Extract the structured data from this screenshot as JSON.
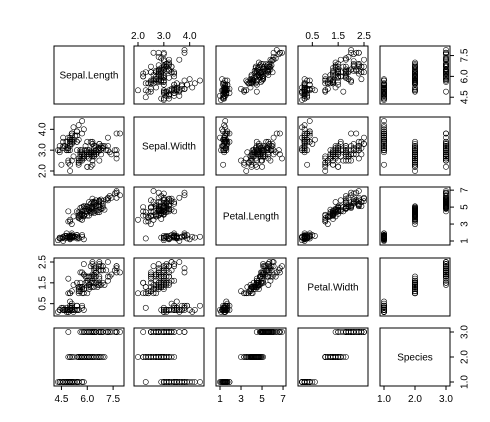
{
  "chart_data": {
    "type": "scatter",
    "variables": [
      {
        "name": "Sepal.Length",
        "range": [
          4.3,
          7.9
        ],
        "ticks": [
          "4.5",
          "6.0",
          "7.5"
        ],
        "tick_values": [
          4.5,
          6.0,
          7.5
        ],
        "values": [
          5.1,
          4.9,
          4.7,
          4.6,
          5.0,
          5.4,
          4.6,
          5.0,
          4.4,
          4.9,
          5.4,
          4.8,
          4.8,
          4.3,
          5.8,
          5.7,
          5.4,
          5.1,
          5.7,
          5.1,
          5.4,
          5.1,
          4.6,
          5.1,
          4.8,
          5.0,
          5.0,
          5.2,
          5.2,
          4.7,
          4.8,
          5.4,
          5.2,
          5.5,
          4.9,
          5.0,
          5.5,
          4.9,
          4.4,
          5.1,
          5.0,
          4.5,
          4.4,
          5.0,
          5.1,
          4.8,
          5.1,
          4.6,
          5.3,
          5.0,
          7.0,
          6.4,
          6.9,
          5.5,
          6.5,
          5.7,
          6.3,
          4.9,
          6.6,
          5.2,
          5.0,
          5.9,
          6.0,
          6.1,
          5.6,
          6.7,
          5.6,
          5.8,
          6.2,
          5.6,
          5.9,
          6.1,
          6.3,
          6.1,
          6.4,
          6.6,
          6.8,
          6.7,
          6.0,
          5.7,
          5.5,
          5.5,
          5.8,
          6.0,
          5.4,
          6.0,
          6.7,
          6.3,
          5.6,
          5.5,
          5.5,
          6.1,
          5.8,
          5.0,
          5.6,
          5.7,
          5.7,
          6.2,
          5.1,
          5.7,
          6.3,
          5.8,
          7.1,
          6.3,
          6.5,
          7.6,
          4.9,
          7.3,
          6.7,
          7.2,
          6.5,
          6.4,
          6.8,
          5.7,
          5.8,
          6.4,
          6.5,
          7.7,
          7.7,
          6.0,
          6.9,
          5.6,
          7.7,
          6.3,
          6.7,
          7.2,
          6.2,
          6.1,
          6.4,
          7.2,
          7.4,
          7.9,
          6.4,
          6.3,
          6.1,
          7.7,
          6.3,
          6.4,
          6.0,
          6.9,
          6.7,
          6.9,
          5.8,
          6.8,
          6.7,
          6.7,
          6.3,
          6.5,
          6.2,
          5.9
        ]
      },
      {
        "name": "Sepal.Width",
        "range": [
          2.0,
          4.4
        ],
        "ticks": [
          "2.0",
          "3.0",
          "4.0"
        ],
        "tick_values": [
          2.0,
          3.0,
          4.0
        ],
        "values": [
          3.5,
          3.0,
          3.2,
          3.1,
          3.6,
          3.9,
          3.4,
          3.4,
          2.9,
          3.1,
          3.7,
          3.4,
          3.0,
          3.0,
          4.0,
          4.4,
          3.9,
          3.5,
          3.8,
          3.8,
          3.4,
          3.7,
          3.6,
          3.3,
          3.4,
          3.0,
          3.4,
          3.5,
          3.4,
          3.2,
          3.1,
          3.4,
          4.1,
          4.2,
          3.1,
          3.2,
          3.5,
          3.6,
          3.0,
          3.4,
          3.5,
          2.3,
          3.2,
          3.5,
          3.8,
          3.0,
          3.8,
          3.2,
          3.7,
          3.3,
          3.2,
          3.2,
          3.1,
          2.3,
          2.8,
          2.8,
          3.3,
          2.4,
          2.9,
          2.7,
          2.0,
          3.0,
          2.2,
          2.9,
          2.9,
          3.1,
          3.0,
          2.7,
          2.2,
          2.5,
          3.2,
          2.8,
          2.5,
          2.8,
          2.9,
          3.0,
          2.8,
          3.0,
          2.9,
          2.6,
          2.4,
          2.4,
          2.7,
          2.7,
          3.0,
          3.4,
          3.1,
          2.3,
          3.0,
          2.5,
          2.6,
          3.0,
          2.6,
          2.3,
          2.7,
          3.0,
          2.9,
          2.9,
          2.5,
          2.8,
          3.3,
          2.7,
          3.0,
          2.9,
          3.0,
          3.0,
          2.5,
          2.9,
          2.5,
          3.6,
          3.2,
          2.7,
          3.0,
          2.5,
          2.8,
          3.2,
          3.0,
          3.8,
          2.6,
          2.2,
          3.2,
          2.8,
          2.8,
          2.7,
          3.3,
          3.2,
          2.8,
          3.0,
          2.8,
          3.0,
          2.8,
          3.8,
          2.8,
          2.8,
          2.6,
          3.0,
          3.4,
          3.1,
          3.0,
          3.1,
          3.1,
          3.1,
          2.7,
          3.2,
          3.3,
          3.0,
          2.5,
          3.0,
          3.4,
          3.0
        ]
      },
      {
        "name": "Petal.Length",
        "range": [
          1.0,
          6.9
        ],
        "ticks": [
          "1",
          "3",
          "5",
          "7"
        ],
        "tick_values": [
          1,
          3,
          5,
          7
        ],
        "values": [
          1.4,
          1.4,
          1.3,
          1.5,
          1.4,
          1.7,
          1.4,
          1.5,
          1.4,
          1.5,
          1.5,
          1.6,
          1.4,
          1.1,
          1.2,
          1.5,
          1.3,
          1.4,
          1.7,
          1.5,
          1.7,
          1.5,
          1.0,
          1.7,
          1.9,
          1.6,
          1.6,
          1.5,
          1.4,
          1.6,
          1.6,
          1.5,
          1.5,
          1.4,
          1.5,
          1.2,
          1.3,
          1.4,
          1.3,
          1.5,
          1.3,
          1.3,
          1.3,
          1.6,
          1.9,
          1.4,
          1.6,
          1.4,
          1.5,
          1.4,
          4.7,
          4.5,
          4.9,
          4.0,
          4.6,
          4.5,
          4.7,
          3.3,
          4.6,
          3.9,
          3.5,
          4.2,
          4.0,
          4.7,
          3.6,
          4.4,
          4.5,
          4.1,
          4.5,
          3.9,
          4.8,
          4.0,
          4.9,
          4.7,
          4.3,
          4.4,
          4.8,
          5.0,
          4.5,
          3.5,
          3.8,
          3.7,
          3.9,
          5.1,
          4.5,
          4.5,
          4.7,
          4.4,
          4.1,
          4.0,
          4.4,
          4.6,
          4.0,
          3.3,
          4.2,
          4.2,
          4.2,
          4.3,
          3.0,
          4.1,
          6.0,
          5.1,
          5.9,
          5.6,
          5.8,
          6.6,
          4.5,
          6.3,
          5.8,
          6.1,
          5.1,
          5.3,
          5.5,
          5.0,
          5.1,
          5.3,
          5.5,
          6.7,
          6.9,
          5.0,
          5.7,
          4.9,
          6.7,
          4.9,
          5.7,
          6.0,
          4.8,
          4.9,
          5.6,
          5.8,
          6.1,
          6.4,
          5.6,
          5.1,
          5.6,
          6.1,
          5.6,
          5.5,
          4.8,
          5.4,
          5.6,
          5.1,
          5.1,
          5.9,
          5.7,
          5.2,
          5.0,
          5.2,
          5.4,
          5.1
        ]
      },
      {
        "name": "Petal.Width",
        "range": [
          0.1,
          2.5
        ],
        "ticks": [
          "0.5",
          "1.5",
          "2.5"
        ],
        "tick_values": [
          0.5,
          1.5,
          2.5
        ],
        "values": [
          0.2,
          0.2,
          0.2,
          0.2,
          0.2,
          0.4,
          0.3,
          0.2,
          0.2,
          0.1,
          0.2,
          0.2,
          0.1,
          0.1,
          0.2,
          0.4,
          0.4,
          0.3,
          0.3,
          0.3,
          0.2,
          0.4,
          0.2,
          0.5,
          0.2,
          0.2,
          0.4,
          0.2,
          0.2,
          0.2,
          0.2,
          0.4,
          0.1,
          0.2,
          0.2,
          0.2,
          0.2,
          0.1,
          0.2,
          0.2,
          0.3,
          0.3,
          0.2,
          0.6,
          0.4,
          0.3,
          0.2,
          0.2,
          0.2,
          0.2,
          1.4,
          1.5,
          1.5,
          1.3,
          1.5,
          1.3,
          1.6,
          1.0,
          1.3,
          1.4,
          1.0,
          1.5,
          1.0,
          1.4,
          1.3,
          1.4,
          1.5,
          1.0,
          1.5,
          1.1,
          1.8,
          1.3,
          1.5,
          1.2,
          1.3,
          1.4,
          1.4,
          1.7,
          1.5,
          1.0,
          1.1,
          1.0,
          1.2,
          1.6,
          1.5,
          1.6,
          1.5,
          1.3,
          1.3,
          1.3,
          1.2,
          1.4,
          1.2,
          1.0,
          1.3,
          1.2,
          1.3,
          1.3,
          1.1,
          1.3,
          2.5,
          1.9,
          2.1,
          1.8,
          2.2,
          2.1,
          1.7,
          1.8,
          1.8,
          2.5,
          2.0,
          1.9,
          2.1,
          2.0,
          2.4,
          2.3,
          1.8,
          2.2,
          2.3,
          1.5,
          2.3,
          2.0,
          2.0,
          1.8,
          2.1,
          1.8,
          1.8,
          1.8,
          2.1,
          1.6,
          1.9,
          2.0,
          2.2,
          1.5,
          1.4,
          2.3,
          2.4,
          1.8,
          1.8,
          2.1,
          2.4,
          2.3,
          1.9,
          2.3,
          2.5,
          2.3,
          1.9,
          2.0,
          2.3,
          1.8
        ]
      },
      {
        "name": "Species",
        "range": [
          1.0,
          3.0
        ],
        "ticks": [
          "1.0",
          "2.0",
          "3.0"
        ],
        "tick_values": [
          1.0,
          2.0,
          3.0
        ],
        "values": [
          1,
          1,
          1,
          1,
          1,
          1,
          1,
          1,
          1,
          1,
          1,
          1,
          1,
          1,
          1,
          1,
          1,
          1,
          1,
          1,
          1,
          1,
          1,
          1,
          1,
          1,
          1,
          1,
          1,
          1,
          1,
          1,
          1,
          1,
          1,
          1,
          1,
          1,
          1,
          1,
          1,
          1,
          1,
          1,
          1,
          1,
          1,
          1,
          1,
          1,
          2,
          2,
          2,
          2,
          2,
          2,
          2,
          2,
          2,
          2,
          2,
          2,
          2,
          2,
          2,
          2,
          2,
          2,
          2,
          2,
          2,
          2,
          2,
          2,
          2,
          2,
          2,
          2,
          2,
          2,
          2,
          2,
          2,
          2,
          2,
          2,
          2,
          2,
          2,
          2,
          2,
          2,
          2,
          2,
          2,
          2,
          2,
          2,
          2,
          2,
          3,
          3,
          3,
          3,
          3,
          3,
          3,
          3,
          3,
          3,
          3,
          3,
          3,
          3,
          3,
          3,
          3,
          3,
          3,
          3,
          3,
          3,
          3,
          3,
          3,
          3,
          3,
          3,
          3,
          3,
          3,
          3,
          3,
          3,
          3,
          3,
          3,
          3,
          3,
          3,
          3,
          3,
          3,
          3,
          3,
          3,
          3,
          3,
          3,
          3
        ]
      }
    ],
    "title": "",
    "grid": false,
    "marker": "open-circle"
  }
}
